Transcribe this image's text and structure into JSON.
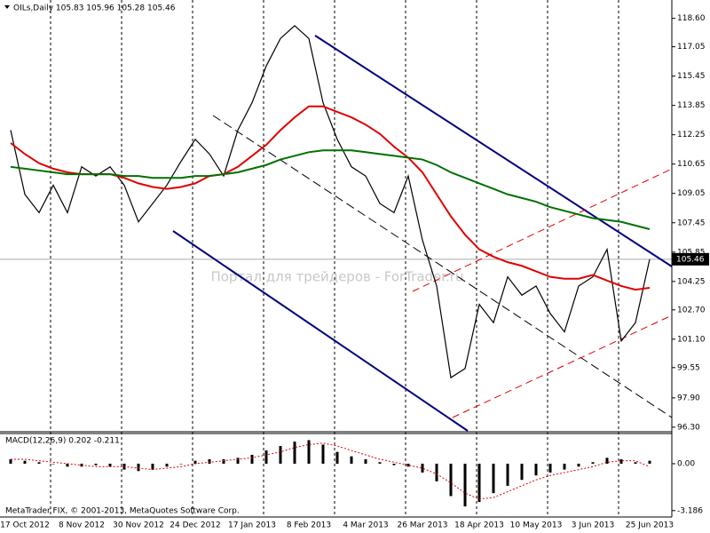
{
  "chart_data": [
    {
      "type": "line",
      "title": "OILs,Daily  105.83 105.96 105.28 105.46",
      "annotation": "Портал для трейдеров - ForTrader.ru",
      "categories": [
        null,
        "17 Oct 2012",
        null,
        null,
        null,
        "8 Nov 2012",
        null,
        null,
        null,
        "30 Nov 2012",
        null,
        null,
        null,
        "24 Dec 2012",
        null,
        null,
        null,
        "17 Jan 2013",
        null,
        null,
        null,
        "8 Feb 2013",
        null,
        null,
        null,
        "4 Mar 2013",
        null,
        null,
        null,
        "26 Mar 2013",
        null,
        null,
        null,
        "18 Apr 2013",
        null,
        null,
        null,
        "10 May 2013",
        null,
        null,
        null,
        "3 Jun 2013",
        null,
        null,
        null,
        "25 Jun 2013"
      ],
      "series": [
        {
          "color": "#000000",
          "values": [
            112.5,
            109,
            108,
            109.5,
            108,
            110.5,
            110,
            110.5,
            109.5,
            107.5,
            108.5,
            109.5,
            110.8,
            112,
            111.2,
            110,
            112.5,
            114,
            116,
            117.5,
            118.2,
            117.5,
            114,
            112,
            110.5,
            110,
            108.5,
            108,
            110,
            106.5,
            104,
            99,
            99.5,
            103,
            102,
            104.5,
            103.5,
            104,
            102.5,
            101.5,
            104,
            104.5,
            106,
            101,
            102,
            105.46
          ]
        },
        {
          "color": "#e00000",
          "values": [
            111.8,
            111.2,
            110.7,
            110.4,
            110.2,
            110.1,
            110.1,
            110.1,
            109.9,
            109.6,
            109.4,
            109.3,
            109.4,
            109.6,
            110,
            110.1,
            110.5,
            111.1,
            111.7,
            112.5,
            113.2,
            113.8,
            113.8,
            113.5,
            113.2,
            112.8,
            112.3,
            111.6,
            111,
            110.2,
            109,
            107.8,
            106.8,
            106,
            105.6,
            105.3,
            105.1,
            104.8,
            104.5,
            104.4,
            104.4,
            104.6,
            104.3,
            104,
            103.8,
            103.9
          ]
        },
        {
          "color": "#007000",
          "values": [
            110.5,
            110.4,
            110.3,
            110.2,
            110.1,
            110.1,
            110.1,
            110.1,
            110,
            110,
            109.9,
            109.9,
            109.9,
            110,
            110,
            110.1,
            110.2,
            110.4,
            110.6,
            110.9,
            111.1,
            111.3,
            111.4,
            111.4,
            111.4,
            111.3,
            111.2,
            111.1,
            111,
            110.9,
            110.6,
            110.2,
            109.9,
            109.6,
            109.3,
            109,
            108.8,
            108.6,
            108.3,
            108.1,
            107.9,
            107.7,
            107.6,
            107.5,
            107.3,
            107.1
          ]
        }
      ],
      "ylim": [
        96.1,
        119.6
      ],
      "yticks": [
        {
          "value": 118.6,
          "label": "118.60"
        },
        {
          "value": 117.05,
          "label": "117.05"
        },
        {
          "value": 115.45,
          "label": "115.45"
        },
        {
          "value": 113.85,
          "label": "113.85"
        },
        {
          "value": 112.25,
          "label": "112.25"
        },
        {
          "value": 110.65,
          "label": "110.65"
        },
        {
          "value": 109.05,
          "label": "109.05"
        },
        {
          "value": 107.45,
          "label": "107.45"
        },
        {
          "value": 105.85,
          "label": "105.85"
        },
        {
          "value": 104.25,
          "label": "104.25"
        },
        {
          "value": 102.7,
          "label": "102.70"
        },
        {
          "value": 101.1,
          "label": "101.10"
        },
        {
          "value": 99.55,
          "label": "99.55"
        },
        {
          "value": 97.9,
          "label": "97.90"
        },
        {
          "value": 96.3,
          "label": "96.30"
        }
      ]
    },
    {
      "type": "bar",
      "title": "MACD(12,26,9) 0.202 -0.211",
      "annotation": "MetaTrader FIX, © 2001-2013, MetaQuotes Software Corp.",
      "color": "#000000",
      "values": [
        0.3,
        0.2,
        0.1,
        0,
        -0.2,
        -0.2,
        -0.1,
        -0.2,
        -0.4,
        -0.5,
        -0.4,
        -0.2,
        0,
        0.2,
        0.3,
        0.3,
        0.4,
        0.6,
        0.9,
        1.2,
        1.5,
        1.6,
        1.3,
        0.8,
        0.5,
        0.3,
        0.1,
        -0.1,
        -0.2,
        -0.6,
        -1.2,
        -2.2,
        -2.9,
        -2.6,
        -2,
        -1.5,
        -1.1,
        -0.8,
        -0.6,
        -0.4,
        -0.2,
        0.1,
        0.4,
        0.3,
        0.1,
        0.2
      ],
      "signal": {
        "color": "#e00000",
        "values": [
          0.3,
          0.3,
          0.2,
          0.1,
          0,
          -0.1,
          -0.2,
          -0.2,
          -0.2,
          -0.3,
          -0.4,
          -0.3,
          -0.2,
          0,
          0.1,
          0.2,
          0.3,
          0.4,
          0.6,
          0.8,
          1.1,
          1.3,
          1.4,
          1.2,
          0.9,
          0.6,
          0.3,
          0.1,
          -0.1,
          -0.3,
          -0.7,
          -1.3,
          -2,
          -2.4,
          -2.3,
          -1.9,
          -1.5,
          -1.1,
          -0.8,
          -0.6,
          -0.4,
          -0.2,
          0.1,
          0.2,
          0.2,
          -0.211
        ]
      },
      "ylim": [
        -3.5,
        2.05
      ],
      "yticks": [
        {
          "value": 0,
          "label": "0.00"
        },
        -3.186
      ]
    }
  ]
}
